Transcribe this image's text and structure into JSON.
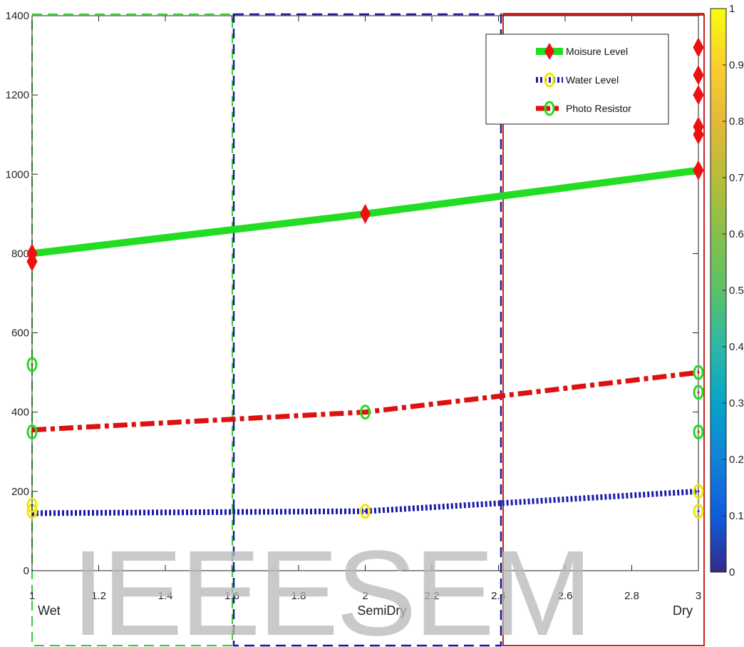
{
  "chart_data": {
    "type": "line",
    "title": "",
    "xlabel": "",
    "ylabel": "",
    "xlim": [
      1,
      3
    ],
    "ylim": [
      0,
      1400
    ],
    "x_ticks": [
      "1",
      "1.2",
      "1.4",
      "1.6",
      "1.8",
      "2",
      "2.2",
      "2.4",
      "2.6",
      "2.8",
      "3"
    ],
    "y_ticks": [
      "0",
      "200",
      "400",
      "600",
      "800",
      "1000",
      "1200",
      "1400"
    ],
    "grid": false,
    "legend_position": "top-right",
    "series": [
      {
        "name": "Moisure Level",
        "color": "#22dd22",
        "marker": "diamond",
        "marker_color": "#ee1111",
        "line_style": "solid",
        "line_x": [
          1,
          2,
          3
        ],
        "line_y": [
          800,
          900,
          1010
        ],
        "markers": [
          [
            1,
            800
          ],
          [
            1,
            780
          ],
          [
            2,
            900
          ],
          [
            3,
            1010
          ],
          [
            3,
            1100
          ],
          [
            3,
            1120
          ],
          [
            3,
            1200
          ],
          [
            3,
            1250
          ],
          [
            3,
            1320
          ]
        ]
      },
      {
        "name": "Water Level",
        "color": "#1a1aaa",
        "marker": "circle",
        "marker_color": "#f2e600",
        "line_style": "dotted",
        "line_x": [
          1,
          2,
          3
        ],
        "line_y": [
          145,
          150,
          200
        ],
        "markers": [
          [
            1,
            150
          ],
          [
            1,
            165
          ],
          [
            2,
            150
          ],
          [
            3,
            150
          ],
          [
            3,
            200
          ]
        ]
      },
      {
        "name": "Photo Resistor",
        "color": "#dd1111",
        "marker": "circle",
        "marker_color": "#22dd22",
        "line_style": "dashdot",
        "line_x": [
          1,
          2,
          3
        ],
        "line_y": [
          355,
          400,
          500
        ],
        "markers": [
          [
            1,
            520
          ],
          [
            1,
            350
          ],
          [
            2,
            400
          ],
          [
            3,
            500
          ],
          [
            3,
            450
          ],
          [
            3,
            350
          ]
        ]
      }
    ],
    "regions": [
      {
        "label": "Wet",
        "x_range": [
          1,
          1.6
        ],
        "color": "#33cc33",
        "style": "dashed"
      },
      {
        "label": "SemiDry",
        "x_range": [
          1.6,
          2.4
        ],
        "color": "#1a1a99",
        "style": "dashed"
      },
      {
        "label": "Dry",
        "x_range": [
          2.4,
          3
        ],
        "color": "#cc2222",
        "style": "solid"
      }
    ],
    "colorbar": {
      "range": [
        0,
        1
      ],
      "ticks": [
        "0",
        "0.1",
        "0.2",
        "0.3",
        "0.4",
        "0.5",
        "0.6",
        "0.7",
        "0.8",
        "0.9",
        "1"
      ],
      "colormap": "parula"
    }
  },
  "watermark": "IEEESEM"
}
